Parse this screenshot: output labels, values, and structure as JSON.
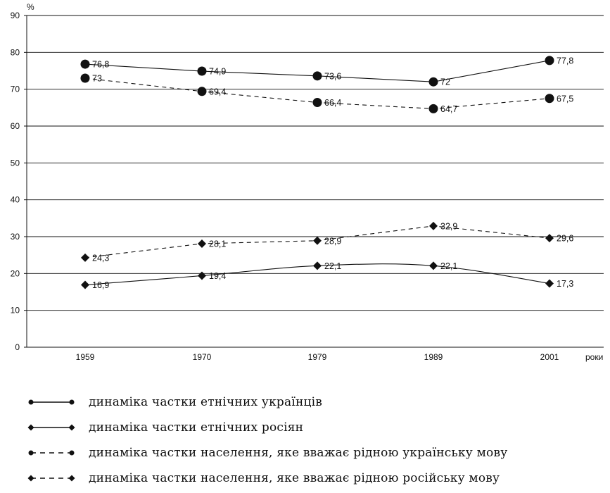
{
  "chart_data": {
    "type": "line",
    "ylabel": "%",
    "xlabel": "роки",
    "ylim": [
      0,
      90
    ],
    "yticks": [
      0,
      10,
      20,
      30,
      40,
      50,
      60,
      70,
      80,
      90
    ],
    "categories": [
      "1959",
      "1970",
      "1979",
      "1989",
      "2001"
    ],
    "grid": "horizontal",
    "legend_position": "bottom",
    "series": [
      {
        "name": "динаміка частки етнічних українців",
        "style": "solid",
        "marker": "circle",
        "values": [
          76.8,
          74.9,
          73.6,
          72,
          77.8
        ],
        "labels": [
          "76,8",
          "74,9",
          "73,6",
          "72",
          "77,8"
        ]
      },
      {
        "name": "динаміка частки етнічних росіян",
        "style": "solid",
        "marker": "diamond",
        "values": [
          16.9,
          19.4,
          22.1,
          22.1,
          17.3
        ],
        "labels": [
          "16,9",
          "19,4",
          "22,1",
          "22,1",
          "17,3"
        ]
      },
      {
        "name": "динаміка частки населення, яке вважає рідною українську мову",
        "style": "dashed",
        "marker": "circle",
        "values": [
          73,
          69.4,
          66.4,
          64.7,
          67.5
        ],
        "labels": [
          "73",
          "69,4",
          "66,4",
          "64,7",
          "67,5"
        ]
      },
      {
        "name": "динаміка частки населення, яке вважає рідною російську мову",
        "style": "dashed",
        "marker": "diamond",
        "values": [
          24.3,
          28.1,
          28.9,
          32.9,
          29.6
        ],
        "labels": [
          "24,3",
          "28,1",
          "28,9",
          "32,9",
          "29,6"
        ]
      }
    ]
  }
}
